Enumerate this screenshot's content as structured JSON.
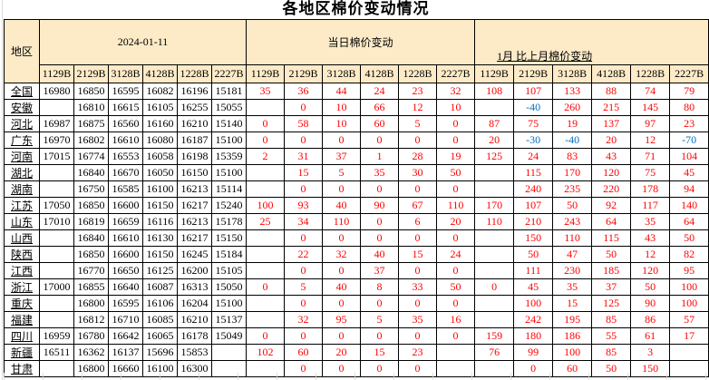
{
  "title": "各地区棉价变动情况",
  "colors": {
    "header_bg": "#FDEBC8",
    "positive_change": "#FF0000",
    "negative_change": "#0070C0",
    "border": "#000000"
  },
  "table": {
    "region_header": "地区",
    "grade_columns": [
      "1129B",
      "2129B",
      "3128B",
      "4128B",
      "1228B",
      "2227B"
    ],
    "sections": {
      "date": "2024-01-11",
      "daily": "当日棉价变动",
      "monthly": "1月 比上月棉价变动"
    },
    "rows": [
      {
        "region": "全国",
        "prices": [
          "16980",
          "16850",
          "16595",
          "16082",
          "16196",
          "15181"
        ],
        "daily": [
          "35",
          "36",
          "44",
          "24",
          "23",
          "32"
        ],
        "monthly": [
          "108",
          "107",
          "133",
          "88",
          "74",
          "79"
        ]
      },
      {
        "region": "安徽",
        "prices": [
          "",
          "16810",
          "16615",
          "16105",
          "16255",
          "15055"
        ],
        "daily": [
          "",
          "0",
          "10",
          "66",
          "12",
          "10"
        ],
        "monthly": [
          "",
          "-40",
          "260",
          "215",
          "145",
          "80"
        ]
      },
      {
        "region": "河北",
        "prices": [
          "16987",
          "16875",
          "16560",
          "16160",
          "16210",
          "15140"
        ],
        "daily": [
          "0",
          "58",
          "10",
          "60",
          "5",
          "0"
        ],
        "monthly": [
          "87",
          "75",
          "19",
          "137",
          "97",
          "23"
        ]
      },
      {
        "region": "广东",
        "prices": [
          "16970",
          "16802",
          "16610",
          "16080",
          "16187",
          "15100"
        ],
        "daily": [
          "0",
          "0",
          "0",
          "0",
          "0",
          "0"
        ],
        "monthly": [
          "20",
          "-30",
          "-40",
          "20",
          "12",
          "-70"
        ]
      },
      {
        "region": "河南",
        "prices": [
          "17015",
          "16774",
          "16553",
          "16058",
          "16198",
          "15359"
        ],
        "daily": [
          "2",
          "31",
          "37",
          "1",
          "28",
          "19"
        ],
        "monthly": [
          "125",
          "24",
          "83",
          "43",
          "71",
          "104"
        ]
      },
      {
        "region": "湖北",
        "prices": [
          "",
          "16840",
          "16670",
          "16050",
          "16150",
          "15100"
        ],
        "daily": [
          "",
          "15",
          "5",
          "35",
          "30",
          "50"
        ],
        "monthly": [
          "",
          "115",
          "170",
          "120",
          "75",
          "45"
        ]
      },
      {
        "region": "湖南",
        "prices": [
          "",
          "16750",
          "16585",
          "16100",
          "16213",
          "15114"
        ],
        "daily": [
          "",
          "0",
          "0",
          "0",
          "0",
          "0"
        ],
        "monthly": [
          "",
          "240",
          "235",
          "220",
          "178",
          "94"
        ]
      },
      {
        "region": "江苏",
        "prices": [
          "17050",
          "16850",
          "16600",
          "16150",
          "16217",
          "15240"
        ],
        "daily": [
          "100",
          "93",
          "40",
          "90",
          "67",
          "110"
        ],
        "monthly": [
          "170",
          "107",
          "50",
          "92",
          "117",
          "140"
        ]
      },
      {
        "region": "山东",
        "prices": [
          "17010",
          "16819",
          "16659",
          "16116",
          "16213",
          "15178"
        ],
        "daily": [
          "25",
          "34",
          "110",
          "0",
          "6",
          "20"
        ],
        "monthly": [
          "110",
          "210",
          "243",
          "64",
          "35",
          "64"
        ]
      },
      {
        "region": "山西",
        "prices": [
          "",
          "16840",
          "16610",
          "16130",
          "16217",
          "15150"
        ],
        "daily": [
          "",
          "0",
          "0",
          "0",
          "0",
          "0"
        ],
        "monthly": [
          "",
          "150",
          "110",
          "115",
          "43",
          "50"
        ]
      },
      {
        "region": "陕西",
        "prices": [
          "",
          "16850",
          "16600",
          "16150",
          "16245",
          "15184"
        ],
        "daily": [
          "",
          "22",
          "32",
          "40",
          "15",
          "24"
        ],
        "monthly": [
          "",
          "50",
          "47",
          "50",
          "12",
          "82"
        ]
      },
      {
        "region": "江西",
        "prices": [
          "",
          "16770",
          "16650",
          "16125",
          "16200",
          "15105"
        ],
        "daily": [
          "",
          "0",
          "0",
          "37",
          "0",
          "0"
        ],
        "monthly": [
          "",
          "111",
          "230",
          "185",
          "120",
          "95"
        ]
      },
      {
        "region": "浙江",
        "prices": [
          "17000",
          "16855",
          "16640",
          "16087",
          "16313",
          "15050"
        ],
        "daily": [
          "0",
          "5",
          "40",
          "8",
          "33",
          "50"
        ],
        "monthly": [
          "0",
          "45",
          "35",
          "37",
          "50",
          "100"
        ]
      },
      {
        "region": "重庆",
        "prices": [
          "",
          "16800",
          "16595",
          "16106",
          "16204",
          "15100"
        ],
        "daily": [
          "",
          "0",
          "0",
          "0",
          "0",
          "0"
        ],
        "monthly": [
          "",
          "100",
          "15",
          "125",
          "90",
          "100"
        ]
      },
      {
        "region": "福建",
        "prices": [
          "",
          "16812",
          "16710",
          "16085",
          "16210",
          "15137"
        ],
        "daily": [
          "",
          "32",
          "95",
          "5",
          "35",
          "16"
        ],
        "monthly": [
          "",
          "242",
          "195",
          "85",
          "86",
          "57"
        ]
      },
      {
        "region": "四川",
        "prices": [
          "16959",
          "16780",
          "16642",
          "16065",
          "16178",
          "15049"
        ],
        "daily": [
          "0",
          "0",
          "0",
          "0",
          "0",
          "0"
        ],
        "monthly": [
          "159",
          "180",
          "186",
          "55",
          "61",
          "17"
        ]
      },
      {
        "region": "新疆",
        "prices": [
          "16511",
          "16362",
          "16137",
          "15696",
          "15853",
          ""
        ],
        "daily": [
          "102",
          "60",
          "20",
          "15",
          "23",
          ""
        ],
        "monthly": [
          "76",
          "99",
          "100",
          "85",
          "3",
          ""
        ]
      },
      {
        "region": "甘肃",
        "prices": [
          "",
          "16800",
          "16660",
          "16100",
          "16300",
          ""
        ],
        "daily": [
          "",
          "0",
          "0",
          "0",
          "0",
          ""
        ],
        "monthly": [
          "",
          "0",
          "60",
          "50",
          "150",
          ""
        ]
      }
    ]
  }
}
